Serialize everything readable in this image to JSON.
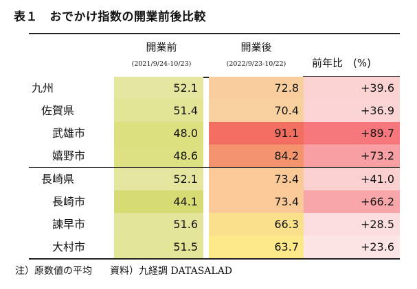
{
  "title": "表１　おでかけ指数の開業前後比較",
  "header": {
    "before_label": "開業前",
    "before_period": "(2021/9/24-10/23)",
    "after_label": "開業後",
    "after_period": "(2022/9/23-10/22)",
    "yoy_label": "前年比　(%)"
  },
  "rows": [
    {
      "name": "九州",
      "level": 0,
      "before": "52.1",
      "after": "72.8",
      "yoy": "+39.6",
      "c1": "#e4e6a0",
      "c2": "#f9cfa0",
      "c3": "#fbd3d3"
    },
    {
      "name": "佐賀県",
      "level": 1,
      "before": "51.4",
      "after": "70.4",
      "yoy": "+36.9",
      "c1": "#e2e496",
      "c2": "#f9d19e",
      "c3": "#fbd5d5"
    },
    {
      "name": "武雄市",
      "level": 2,
      "before": "48.0",
      "after": "91.1",
      "yoy": "+89.7",
      "c1": "#dde07f",
      "c2": "#f26e60",
      "c3": "#f6777c"
    },
    {
      "name": "嬉野市",
      "level": 2,
      "before": "48.6",
      "after": "84.2",
      "yoy": "+73.2",
      "c1": "#dde181",
      "c2": "#f4946f",
      "c3": "#f89fa3"
    },
    {
      "name": "長崎県",
      "level": 1,
      "before": "52.1",
      "after": "73.4",
      "yoy": "+41.0",
      "c1": "#e4e6a0",
      "c2": "#f9c998",
      "c3": "#fbd0d0"
    },
    {
      "name": "長崎市",
      "level": 2,
      "before": "44.1",
      "after": "73.4",
      "yoy": "+66.2",
      "c1": "#d6dc73",
      "c2": "#f9c998",
      "c3": "#f8a6aa"
    },
    {
      "name": "諫早市",
      "level": 2,
      "before": "51.6",
      "after": "66.3",
      "yoy": "+28.5",
      "c1": "#e3e59a",
      "c2": "#fbe08c",
      "c3": "#fcdede"
    },
    {
      "name": "大村市",
      "level": 2,
      "before": "51.5",
      "after": "63.7",
      "yoy": "+23.6",
      "c1": "#e3e599",
      "c2": "#fde989",
      "c3": "#fde5e5"
    }
  ],
  "note": {
    "text1": "注）原数値の平均",
    "text2": "資料）九経調 DATASALAD"
  }
}
